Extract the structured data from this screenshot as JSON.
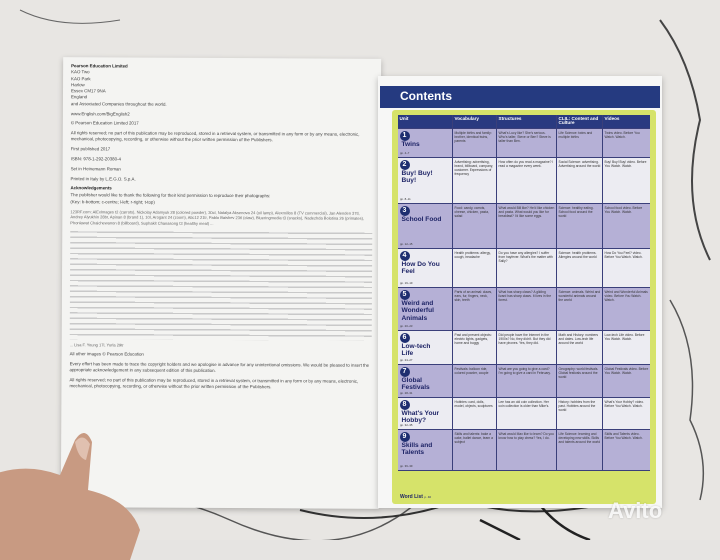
{
  "left_page": {
    "publisher": "Pearson Education Limited",
    "address": [
      "KAO Two",
      "KAO Park",
      "Harlow",
      "Essex CM17 9NA",
      "England",
      "and Associated Companies throughout the world."
    ],
    "website": "www.English.com/BigEnglish2",
    "copyright": "© Pearson Education Limited 2017",
    "rights": "All rights reserved; no part of this publication may be reproduced, stored in a retrieval system, or transmitted in any form or by any means, electronic, mechanical, photocopying, recording, or otherwise without the prior written permission of the Publishers.",
    "first_published": "First published 2017",
    "isbn": "ISBN: 978-1-292-20380-4",
    "set_in": "Set in Heinemann Roman",
    "printed": "Printed in Italy by L.E.G.O. S.p.A.",
    "ack_title": "Acknowledgements",
    "ack_text": "The publisher would like to thank the following for their kind permission to reproduce their photographs:",
    "key": "(Key: b-bottom; c-centre; l-left; r-right; t-top)",
    "credits": "123RF.com: AlExImages t2 (carrots), Nickolay Adamyuk 28 (colored powder), 30cl, Natalya Aksenova 24 (oil lamp), Alexmillos 8 (TV commercial), Jan Alenden 37tl, Andrey Alyukhin 28br, Apinan 8 (brand 1), 10l, Arogant 24 (zoom), Atic12 21tr, Pablo Baishev 23tl (claw), Blueringmedia t3 (snacks), Nadezhda Bolotina 26 (primates), Phonlawat Chaichewanon 8 (billboard), Suphakit Chanasong t3 (healthy meal) ...",
    "credits_end": "... Lisa F. Young 17l, Yurla 29tr",
    "other_images": "All other images © Pearson Education",
    "every_effort": "Every effort has been made to trace the copyright holders and we apologise in advance for any unintentional omissions. We would be pleased to insert the appropriate acknowledgement in any subsequent edition of this publication.",
    "rights_repeat": "All rights reserved; no part of this publication may be reproduced, stored in a retrieval system, or transmitted in any form or by any means, electronic, mechanical, photocopying, recording, or otherwise without the prior written permission of the Publishers."
  },
  "right_page": {
    "title": "Contents",
    "columns": [
      "Unit",
      "Vocabulary",
      "Structures",
      "CLIL: Content and Culture",
      "Videos"
    ],
    "units": [
      {
        "num": "1",
        "name": "Twins",
        "pages": "pp. 4–7",
        "vocab": "Multiple births and family: brother, identical twins, parents",
        "structures": "What's Lucy like? She's serious. Who's taller, Steve or Ben? Steve is taller than Ben.",
        "clil": "Life Science: twins and multiple births",
        "videos": "Twins video. Before You Watch. Watch."
      },
      {
        "num": "2",
        "name": "Buy! Buy! Buy!",
        "pages": "pp. 8–11",
        "vocab": "Advertising: advertising, brand, billboard, company, customer. Expressions of frequency",
        "structures": "How often do you read a magazine? I read a magazine every week.",
        "clil": "Social Science: advertising. Advertising around the world",
        "videos": "Buy! Buy! Buy! video. Before You Watch. Watch."
      },
      {
        "num": "3",
        "name": "School Food",
        "pages": "pp. 12–15",
        "vocab": "Food: candy, carrots, cheese, chicken, pasta, salad",
        "structures": "What would Bill like? He'd like chicken and pasta. What would you like for breakfast? I'd like some eggs.",
        "clil": "Science: healthy eating. School food around the world",
        "videos": "School food video. Before You Watch. Watch."
      },
      {
        "num": "4",
        "name": "How Do You Feel",
        "pages": "pp. 16–19",
        "vocab": "Health problems: allergy, cough, headache",
        "structures": "Do you have any allergies? I suffer from hayfever. What's the matter with Sally?",
        "clil": "Science: health problems. Allergies around the world",
        "videos": "How Do You Feel? video. Before You Watch. Watch."
      },
      {
        "num": "5",
        "name": "Weird and Wonderful Animals",
        "pages": "pp. 20–23",
        "vocab": "Parts of an animal: claws, ears, fur, fingers, neck, skin, teeth",
        "structures": "What has sharp claws? A gliding lizard has sharp claws. It lives in the forest.",
        "clil": "Science: animals. Weird and wonderful animals around the world",
        "videos": "Weird and Wonderful Animals video. Before You Watch. Watch."
      },
      {
        "num": "6",
        "name": "Low-tech Life",
        "pages": "pp. 24–27",
        "vocab": "Past and present objects: electric lights, gadgets, home and buggy",
        "structures": "Did people have the Internet in the 1900s? No, they didn't. But they did have phones. Yes, they did.",
        "clil": "Math and History: numbers and dates. Low-tech life around the world",
        "videos": "Low-tech Life video. Before You Watch. Watch."
      },
      {
        "num": "7",
        "name": "Global Festivals",
        "pages": "pp. 28–31",
        "vocab": "Festivals: balloon ride, colored powder, couple",
        "structures": "What are you going to give a card? I'm going to give a card in February.",
        "clil": "Geography: world festivals. Global festivals around the world",
        "videos": "Global Festivals video. Before You Watch. Watch."
      },
      {
        "num": "8",
        "name": "What's Your Hobby?",
        "pages": "pp. 32–35",
        "vocab": "Hobbies: card, dolls, model, objects, sculptures",
        "structures": "Lee has an old coin collection. Her coin collection is older than Mike's.",
        "clil": "History: hobbies from the past. Hobbies around the world",
        "videos": "What's Your Hobby? video. Before You Watch. Watch."
      },
      {
        "num": "9",
        "name": "Skills and Talents",
        "pages": "pp. 36–39",
        "vocab": "Skills and talents: bake a cake, ballet dance, learn a subject",
        "structures": "What would Max like to learn? Do you know how to play chess? Yes, I do.",
        "clil": "Life Science: learning and developing new skills. Skills and talents around the world",
        "videos": "Skills and Talents video. Before You Watch. Watch."
      }
    ],
    "word_list": {
      "label": "Word List",
      "pages": "p. 40"
    }
  },
  "watermark": "Avito",
  "colors": {
    "header_blue": "#253a80",
    "row_lavender": "#b5b0d6",
    "border_lime": "#d6e36a"
  }
}
